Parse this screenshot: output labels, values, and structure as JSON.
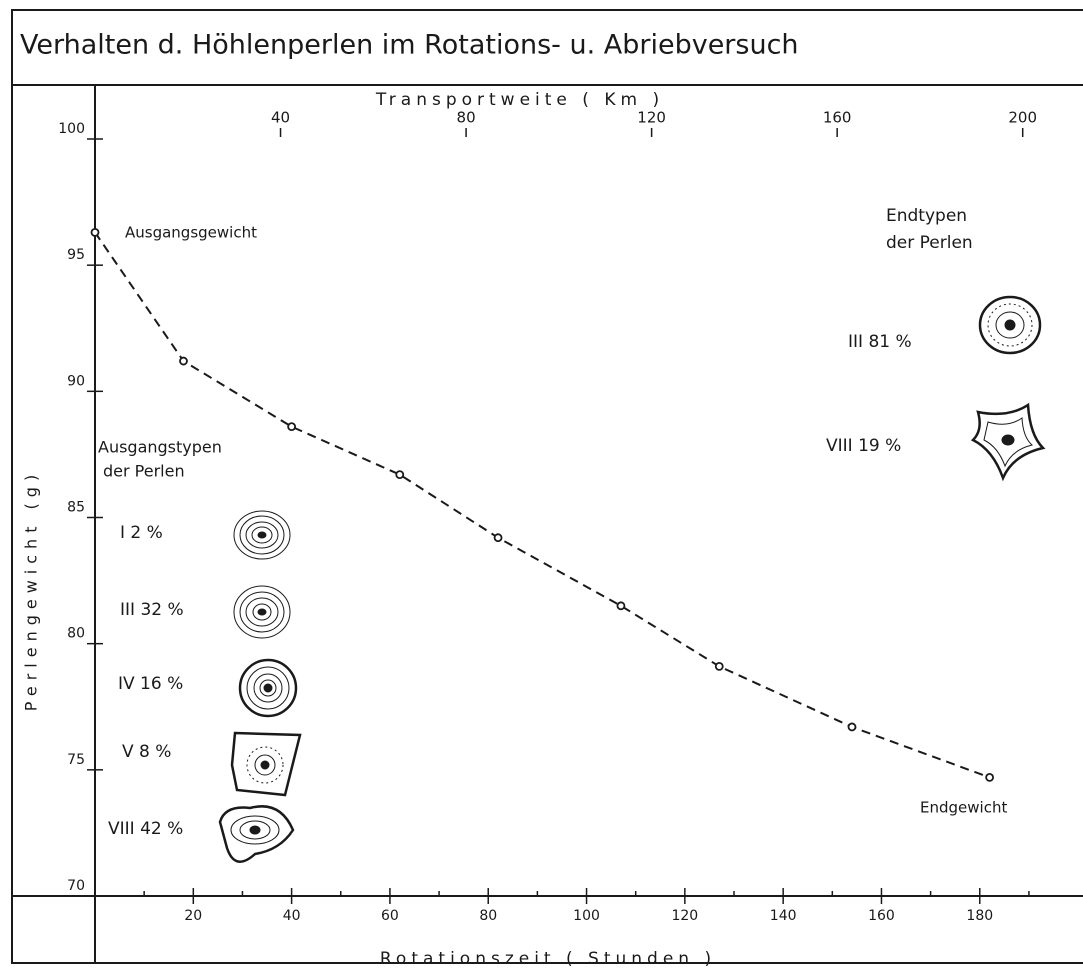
{
  "chart_data": {
    "type": "line",
    "title": "Verhalten d. Höhlenperlen im Rotations- u. Abriebversuch",
    "x_label": "Rotationszeit ( Stunden )",
    "x2_label": "Transportweite ( Km )",
    "y_label": "Perlengewicht (g)",
    "x": [
      0,
      18,
      40,
      62,
      82,
      107,
      127,
      154,
      182
    ],
    "series": [
      {
        "name": "Perlengewicht",
        "color": "#1a1a1a",
        "values": [
          96.3,
          91.2,
          88.6,
          86.7,
          84.2,
          81.5,
          79.1,
          76.7,
          74.7
        ]
      }
    ],
    "xlim": [
      0,
      201
    ],
    "xticks": [
      20,
      40,
      60,
      80,
      100,
      120,
      140,
      160,
      180
    ],
    "xminorticks": [
      10,
      30,
      50,
      70,
      90,
      110,
      130,
      150,
      170,
      190
    ],
    "x2lim": [
      0,
      213
    ],
    "x2ticks": [
      40,
      80,
      120,
      160,
      200
    ],
    "ylim": [
      70,
      100
    ],
    "yticks": [
      70,
      75,
      80,
      85,
      90,
      95,
      100
    ],
    "annotations": [
      "Ausgangsgewicht",
      "Endgewicht",
      "Endtypen",
      "der Perlen",
      "Ausgangstypen",
      "der Perlen",
      "I 2 %",
      "III 32 %",
      "IV 16 %",
      "V 8 %",
      "VIII 42 %",
      "III 81 %",
      "VIII 19 %"
    ]
  }
}
